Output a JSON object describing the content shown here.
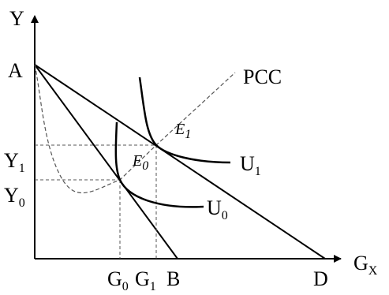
{
  "labels": {
    "y_axis": "Y",
    "x_axis": "G",
    "x_axis_sub": "X",
    "point_a": "A",
    "point_b": "B",
    "point_d": "D",
    "pcc": "PCC",
    "y1": "Y",
    "y1_sub": "1",
    "y0": "Y",
    "y0_sub": "0",
    "g0": "G",
    "g0_sub": "0",
    "g1": "G",
    "g1_sub": "1",
    "e1": "E",
    "e1_sub": "1",
    "e0": "E",
    "e0_sub": "0",
    "u1": "U",
    "u1_sub": "1",
    "u0": "U",
    "u0_sub": "0"
  }
}
